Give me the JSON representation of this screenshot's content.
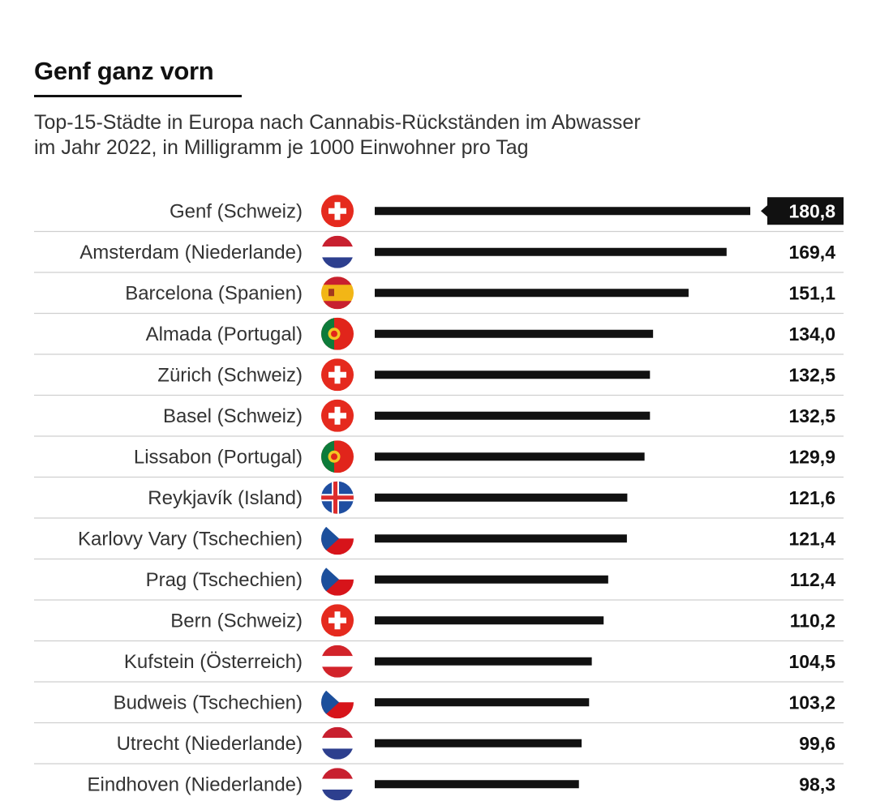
{
  "title": "Genf ganz vorn",
  "subtitle_line1": "Top-15-Städte in Europa nach Cannabis-Rückständen im Abwasser",
  "subtitle_line2": "im Jahr 2022, in Milligramm je 1000 Einwohner pro Tag",
  "colors": {
    "bar": "#111111",
    "highlight_bg": "#111111",
    "highlight_text": "#ffffff",
    "separator": "#cfcfcf"
  },
  "chart_data": {
    "type": "bar",
    "orientation": "horizontal",
    "xlim": [
      0,
      180.8
    ],
    "grid": false,
    "highlight_index": 0,
    "categories": [
      "Genf (Schweiz)",
      "Amsterdam (Niederlande)",
      "Barcelona (Spanien)",
      "Almada (Portugal)",
      "Zürich (Schweiz)",
      "Basel (Schweiz)",
      "Lissabon (Portugal)",
      "Reykjavík (Island)",
      "Karlovy Vary (Tschechien)",
      "Prag (Tschechien)",
      "Bern (Schweiz)",
      "Kufstein (Österreich)",
      "Budweis (Tschechien)",
      "Utrecht (Niederlande)",
      "Eindhoven (Niederlande)"
    ],
    "values": [
      180.8,
      169.4,
      151.1,
      134.0,
      132.5,
      132.5,
      129.9,
      121.6,
      121.4,
      112.4,
      110.2,
      104.5,
      103.2,
      99.6,
      98.3
    ],
    "value_labels": [
      "180,8",
      "169,4",
      "151,1",
      "134,0",
      "132,5",
      "132,5",
      "129,9",
      "121,6",
      "121,4",
      "112,4",
      "110,2",
      "104,5",
      "103,2",
      "99,6",
      "98,3"
    ],
    "flags": [
      "switzerland-flag",
      "netherlands-flag",
      "spain-flag",
      "portugal-flag",
      "switzerland-flag",
      "switzerland-flag",
      "portugal-flag",
      "iceland-flag",
      "czechia-flag",
      "czechia-flag",
      "switzerland-flag",
      "austria-flag",
      "czechia-flag",
      "netherlands-flag",
      "netherlands-flag"
    ]
  }
}
